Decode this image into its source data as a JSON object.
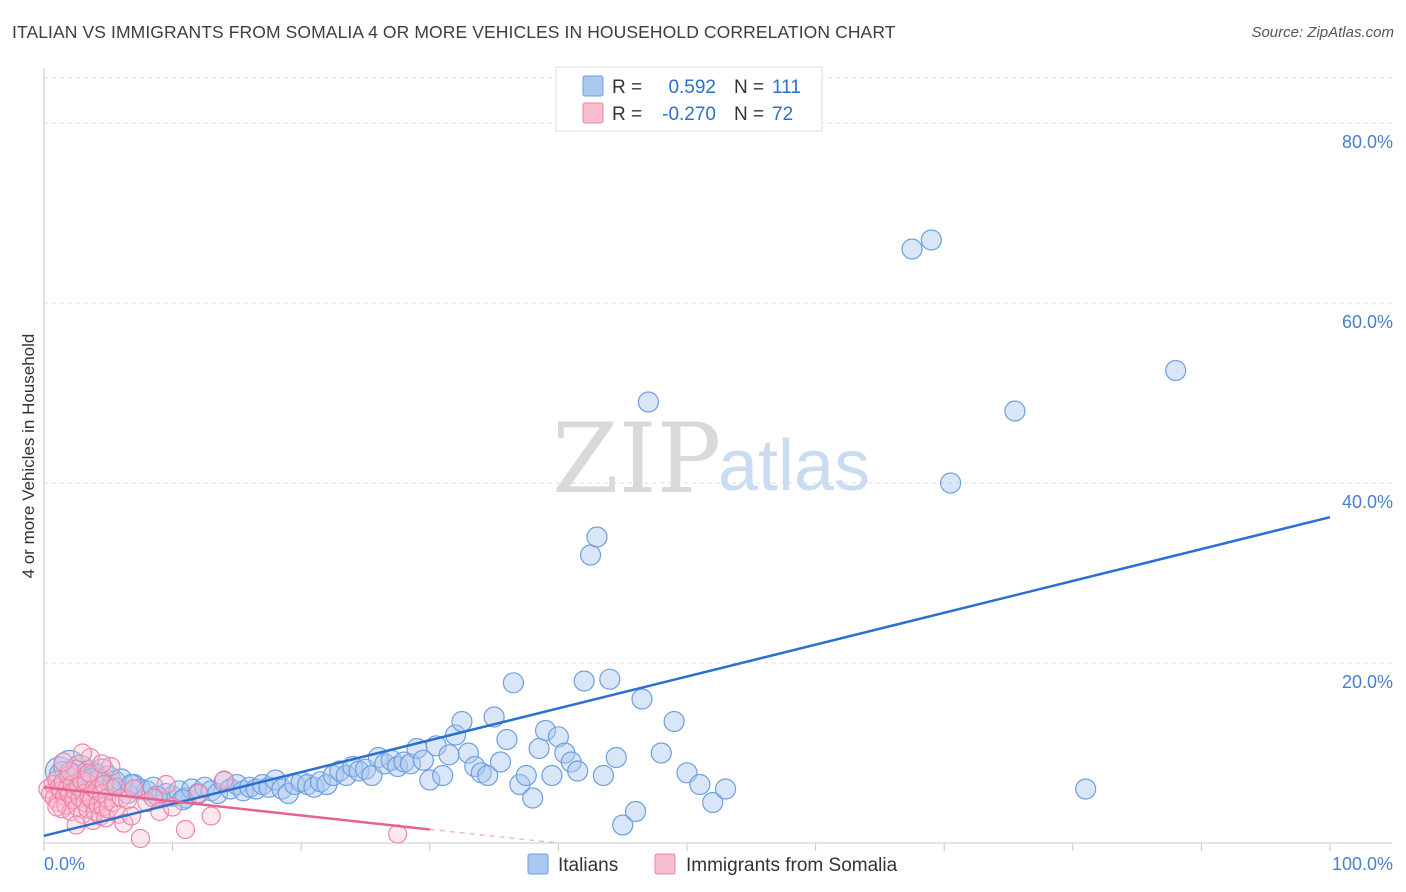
{
  "header": {
    "title": "ITALIAN VS IMMIGRANTS FROM SOMALIA 4 OR MORE VEHICLES IN HOUSEHOLD CORRELATION CHART",
    "source": "Source: ZipAtlas.com"
  },
  "watermark": {
    "zip": "ZIP",
    "atlas": "atlas"
  },
  "legend": {
    "rows": [
      {
        "r_label": "R =",
        "r_value": "0.592",
        "n_label": "N =",
        "n_value": "111",
        "color": "#aac8f0",
        "stroke": "#6e9fdf"
      },
      {
        "r_label": "R =",
        "r_value": "-0.270",
        "n_label": "N =",
        "n_value": "72",
        "color": "#f8bdd0",
        "stroke": "#ee85a6"
      }
    ]
  },
  "chart_data": {
    "type": "scatter",
    "title": "ITALIAN VS IMMIGRANTS FROM SOMALIA 4 OR MORE VEHICLES IN HOUSEHOLD CORRELATION CHART",
    "xlabel": "",
    "ylabel": "4 or more Vehicles in Household",
    "xlim": [
      0,
      100
    ],
    "ylim": [
      0,
      85
    ],
    "x_tick_labels": [
      "0.0%",
      "100.0%"
    ],
    "y_ticks": [
      20,
      40,
      60,
      80
    ],
    "y_tick_labels": [
      "20.0%",
      "40.0%",
      "60.0%",
      "80.0%"
    ],
    "grid": true,
    "series": [
      {
        "name": "Italians",
        "color": "#aac8f0",
        "stroke": "#6e9fdf",
        "trend": {
          "x": [
            0,
            100
          ],
          "y": [
            0.8,
            36.2
          ],
          "color": "#2b6fcf"
        },
        "points": [
          [
            1.2,
            8.0
          ],
          [
            1.5,
            7.5
          ],
          [
            2.0,
            8.5
          ],
          [
            2.3,
            7.2
          ],
          [
            2.8,
            8.2
          ],
          [
            3.2,
            7.0
          ],
          [
            3.5,
            7.8
          ],
          [
            4.0,
            7.5
          ],
          [
            4.5,
            8.0
          ],
          [
            5.0,
            7.2
          ],
          [
            5.5,
            6.8
          ],
          [
            6.0,
            7.0
          ],
          [
            6.5,
            5.5
          ],
          [
            7.0,
            6.5
          ],
          [
            7.5,
            6.0
          ],
          [
            8.0,
            5.8
          ],
          [
            8.5,
            6.2
          ],
          [
            9.0,
            5.0
          ],
          [
            9.5,
            5.5
          ],
          [
            10.0,
            5.2
          ],
          [
            10.5,
            5.8
          ],
          [
            11.0,
            5.0
          ],
          [
            11.5,
            6.0
          ],
          [
            12.0,
            5.5
          ],
          [
            12.5,
            6.2
          ],
          [
            13.0,
            5.8
          ],
          [
            13.5,
            5.5
          ],
          [
            14.0,
            6.8
          ],
          [
            14.5,
            6.0
          ],
          [
            15.0,
            6.5
          ],
          [
            15.5,
            5.8
          ],
          [
            16.0,
            6.2
          ],
          [
            16.5,
            6.0
          ],
          [
            17.0,
            6.5
          ],
          [
            17.5,
            6.2
          ],
          [
            18.0,
            7.0
          ],
          [
            18.5,
            6.0
          ],
          [
            19.0,
            5.5
          ],
          [
            19.5,
            6.5
          ],
          [
            20.0,
            6.8
          ],
          [
            20.5,
            6.5
          ],
          [
            21.0,
            6.2
          ],
          [
            21.5,
            6.8
          ],
          [
            22.0,
            6.5
          ],
          [
            22.5,
            7.5
          ],
          [
            23.0,
            8.0
          ],
          [
            23.5,
            7.5
          ],
          [
            24.0,
            8.5
          ],
          [
            24.5,
            8.0
          ],
          [
            25.0,
            8.2
          ],
          [
            25.5,
            7.5
          ],
          [
            26.0,
            9.5
          ],
          [
            26.5,
            8.8
          ],
          [
            27.0,
            9.2
          ],
          [
            27.5,
            8.5
          ],
          [
            28.0,
            9.0
          ],
          [
            28.5,
            8.8
          ],
          [
            29.0,
            10.5
          ],
          [
            29.5,
            9.2
          ],
          [
            30.0,
            7.0
          ],
          [
            30.5,
            10.8
          ],
          [
            31.0,
            7.5
          ],
          [
            31.5,
            9.8
          ],
          [
            32.0,
            12.0
          ],
          [
            32.5,
            13.5
          ],
          [
            33.0,
            10.0
          ],
          [
            33.5,
            8.5
          ],
          [
            34.0,
            7.8
          ],
          [
            34.5,
            7.5
          ],
          [
            35.0,
            14.0
          ],
          [
            35.5,
            9.0
          ],
          [
            36.0,
            11.5
          ],
          [
            36.5,
            17.8
          ],
          [
            37.0,
            6.5
          ],
          [
            37.5,
            7.5
          ],
          [
            38.0,
            5.0
          ],
          [
            38.5,
            10.5
          ],
          [
            39.0,
            12.5
          ],
          [
            39.5,
            7.5
          ],
          [
            40.0,
            11.8
          ],
          [
            40.5,
            10.0
          ],
          [
            41.0,
            9.0
          ],
          [
            41.5,
            8.0
          ],
          [
            42.0,
            18.0
          ],
          [
            42.5,
            32.0
          ],
          [
            43.0,
            34.0
          ],
          [
            43.5,
            7.5
          ],
          [
            44.0,
            18.2
          ],
          [
            44.5,
            9.5
          ],
          [
            45.0,
            2.0
          ],
          [
            46.0,
            3.5
          ],
          [
            46.5,
            16.0
          ],
          [
            47.0,
            49.0
          ],
          [
            48.0,
            10.0
          ],
          [
            49.0,
            13.5
          ],
          [
            50.0,
            7.8
          ],
          [
            51.0,
            6.5
          ],
          [
            52.0,
            4.5
          ],
          [
            53.0,
            6.0
          ],
          [
            67.5,
            66.0
          ],
          [
            69.0,
            67.0
          ],
          [
            70.5,
            40.0
          ],
          [
            75.5,
            48.0
          ],
          [
            81.0,
            6.0
          ],
          [
            88.0,
            52.5
          ],
          [
            2.5,
            6.5
          ],
          [
            3.8,
            7.2
          ],
          [
            5.2,
            6.0
          ],
          [
            6.8,
            6.5
          ],
          [
            8.8,
            5.2
          ],
          [
            10.8,
            4.8
          ]
        ],
        "sizes": [
          14,
          14,
          16,
          14,
          14,
          12,
          12,
          12,
          12,
          12,
          11,
          11,
          10,
          10,
          10,
          10,
          10,
          10,
          10,
          10,
          10,
          10,
          10,
          10,
          10,
          10,
          10,
          10,
          10,
          10,
          10,
          10,
          10,
          10,
          10,
          10,
          10,
          10,
          10,
          10,
          10,
          10,
          10,
          10,
          10,
          10,
          10,
          10,
          10,
          10,
          10,
          10,
          10,
          10,
          10,
          10,
          10,
          10,
          10,
          10,
          10,
          10,
          10,
          10,
          10,
          10,
          10,
          10,
          10,
          10,
          10,
          10,
          10,
          10,
          10,
          10,
          10,
          10,
          10,
          10,
          10,
          10,
          10,
          10,
          10,
          10,
          10,
          10,
          10,
          10,
          10,
          10,
          10,
          10,
          10,
          10,
          10,
          10,
          10,
          10,
          10,
          10,
          10,
          10,
          10,
          10,
          10,
          10,
          10,
          10,
          10
        ]
      },
      {
        "name": "Immigrants from Somalia",
        "color": "#f8bdd0",
        "stroke": "#ee85a6",
        "trend": {
          "x": [
            0,
            30
          ],
          "y": [
            6.2,
            1.5
          ],
          "dashed_to": [
            40,
            0
          ],
          "color": "#e8628f"
        },
        "points": [
          [
            0.3,
            6.0
          ],
          [
            0.5,
            5.5
          ],
          [
            0.7,
            6.5
          ],
          [
            0.8,
            5.0
          ],
          [
            1.0,
            7.0
          ],
          [
            1.1,
            4.5
          ],
          [
            1.2,
            6.2
          ],
          [
            1.3,
            5.8
          ],
          [
            1.4,
            3.8
          ],
          [
            1.5,
            6.8
          ],
          [
            1.6,
            5.2
          ],
          [
            1.7,
            4.2
          ],
          [
            1.8,
            6.0
          ],
          [
            1.9,
            7.5
          ],
          [
            2.0,
            5.5
          ],
          [
            2.1,
            3.5
          ],
          [
            2.2,
            6.5
          ],
          [
            2.3,
            4.8
          ],
          [
            2.4,
            5.8
          ],
          [
            2.5,
            8.2
          ],
          [
            2.6,
            4.0
          ],
          [
            2.7,
            6.2
          ],
          [
            2.8,
            5.0
          ],
          [
            2.9,
            7.0
          ],
          [
            3.0,
            3.2
          ],
          [
            3.1,
            5.5
          ],
          [
            3.2,
            4.5
          ],
          [
            3.3,
            6.8
          ],
          [
            3.4,
            3.8
          ],
          [
            3.5,
            5.2
          ],
          [
            3.6,
            9.5
          ],
          [
            3.7,
            4.8
          ],
          [
            3.8,
            2.5
          ],
          [
            3.9,
            6.0
          ],
          [
            4.0,
            3.5
          ],
          [
            4.1,
            5.8
          ],
          [
            4.2,
            4.2
          ],
          [
            4.3,
            7.2
          ],
          [
            4.4,
            3.0
          ],
          [
            4.5,
            5.5
          ],
          [
            4.6,
            4.0
          ],
          [
            4.7,
            6.5
          ],
          [
            4.8,
            2.8
          ],
          [
            4.9,
            5.0
          ],
          [
            5.0,
            3.8
          ],
          [
            5.2,
            8.5
          ],
          [
            5.4,
            4.5
          ],
          [
            5.6,
            6.2
          ],
          [
            5.8,
            3.2
          ],
          [
            6.0,
            5.0
          ],
          [
            6.2,
            2.2
          ],
          [
            6.5,
            4.8
          ],
          [
            6.8,
            3.0
          ],
          [
            7.0,
            6.0
          ],
          [
            7.5,
            0.5
          ],
          [
            8.0,
            4.5
          ],
          [
            8.5,
            5.0
          ],
          [
            9.0,
            3.5
          ],
          [
            9.5,
            6.5
          ],
          [
            10.0,
            4.0
          ],
          [
            11.0,
            1.5
          ],
          [
            12.0,
            5.5
          ],
          [
            13.0,
            3.0
          ],
          [
            14.0,
            7.0
          ],
          [
            27.5,
            1.0
          ],
          [
            1.0,
            4.0
          ],
          [
            2.0,
            8.0
          ],
          [
            3.0,
            10.0
          ],
          [
            1.5,
            9.0
          ],
          [
            2.5,
            2.0
          ],
          [
            3.5,
            7.8
          ],
          [
            4.5,
            8.8
          ]
        ],
        "sizes": [
          9,
          9,
          9,
          9,
          9,
          9,
          9,
          9,
          9,
          9,
          9,
          9,
          9,
          9,
          9,
          9,
          9,
          9,
          9,
          9,
          9,
          9,
          9,
          9,
          9,
          9,
          9,
          9,
          9,
          9,
          9,
          9,
          9,
          9,
          9,
          9,
          9,
          9,
          9,
          9,
          9,
          9,
          9,
          9,
          9,
          9,
          9,
          9,
          9,
          9,
          9,
          9,
          9,
          9,
          9,
          9,
          9,
          9,
          9,
          9,
          9,
          9,
          9,
          9,
          9,
          9,
          9,
          9,
          9,
          9,
          9,
          9
        ]
      }
    ],
    "legend_entries": [
      "Italians",
      "Immigrants from Somalia"
    ]
  }
}
